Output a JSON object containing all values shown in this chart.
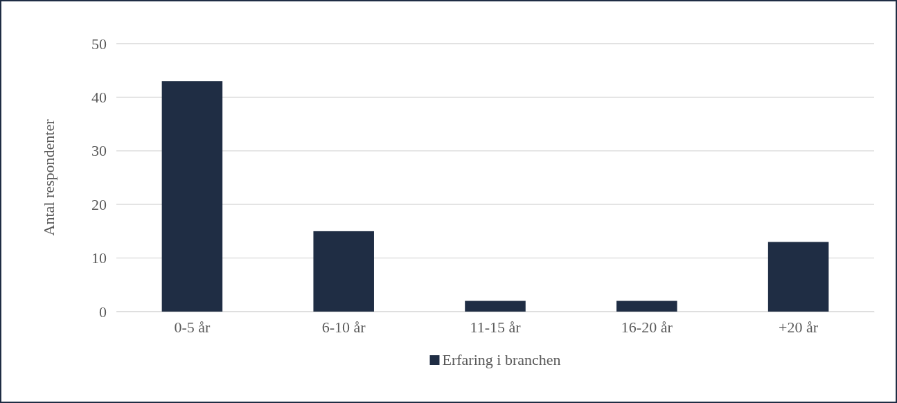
{
  "chart_data": {
    "type": "bar",
    "ylabel": "Antal respondenter",
    "categories": [
      "0-5 år",
      "6-10 år",
      "11-15 år",
      "16-20 år",
      "+20 år"
    ],
    "series": [
      {
        "name": "Erfaring i branchen",
        "color": "#1f2d44",
        "values": [
          43,
          15,
          2,
          2,
          13
        ]
      }
    ],
    "ylim": [
      0,
      50
    ],
    "yticks": [
      0,
      10,
      20,
      30,
      40,
      50
    ],
    "grid": "y",
    "legend": "bottom"
  }
}
